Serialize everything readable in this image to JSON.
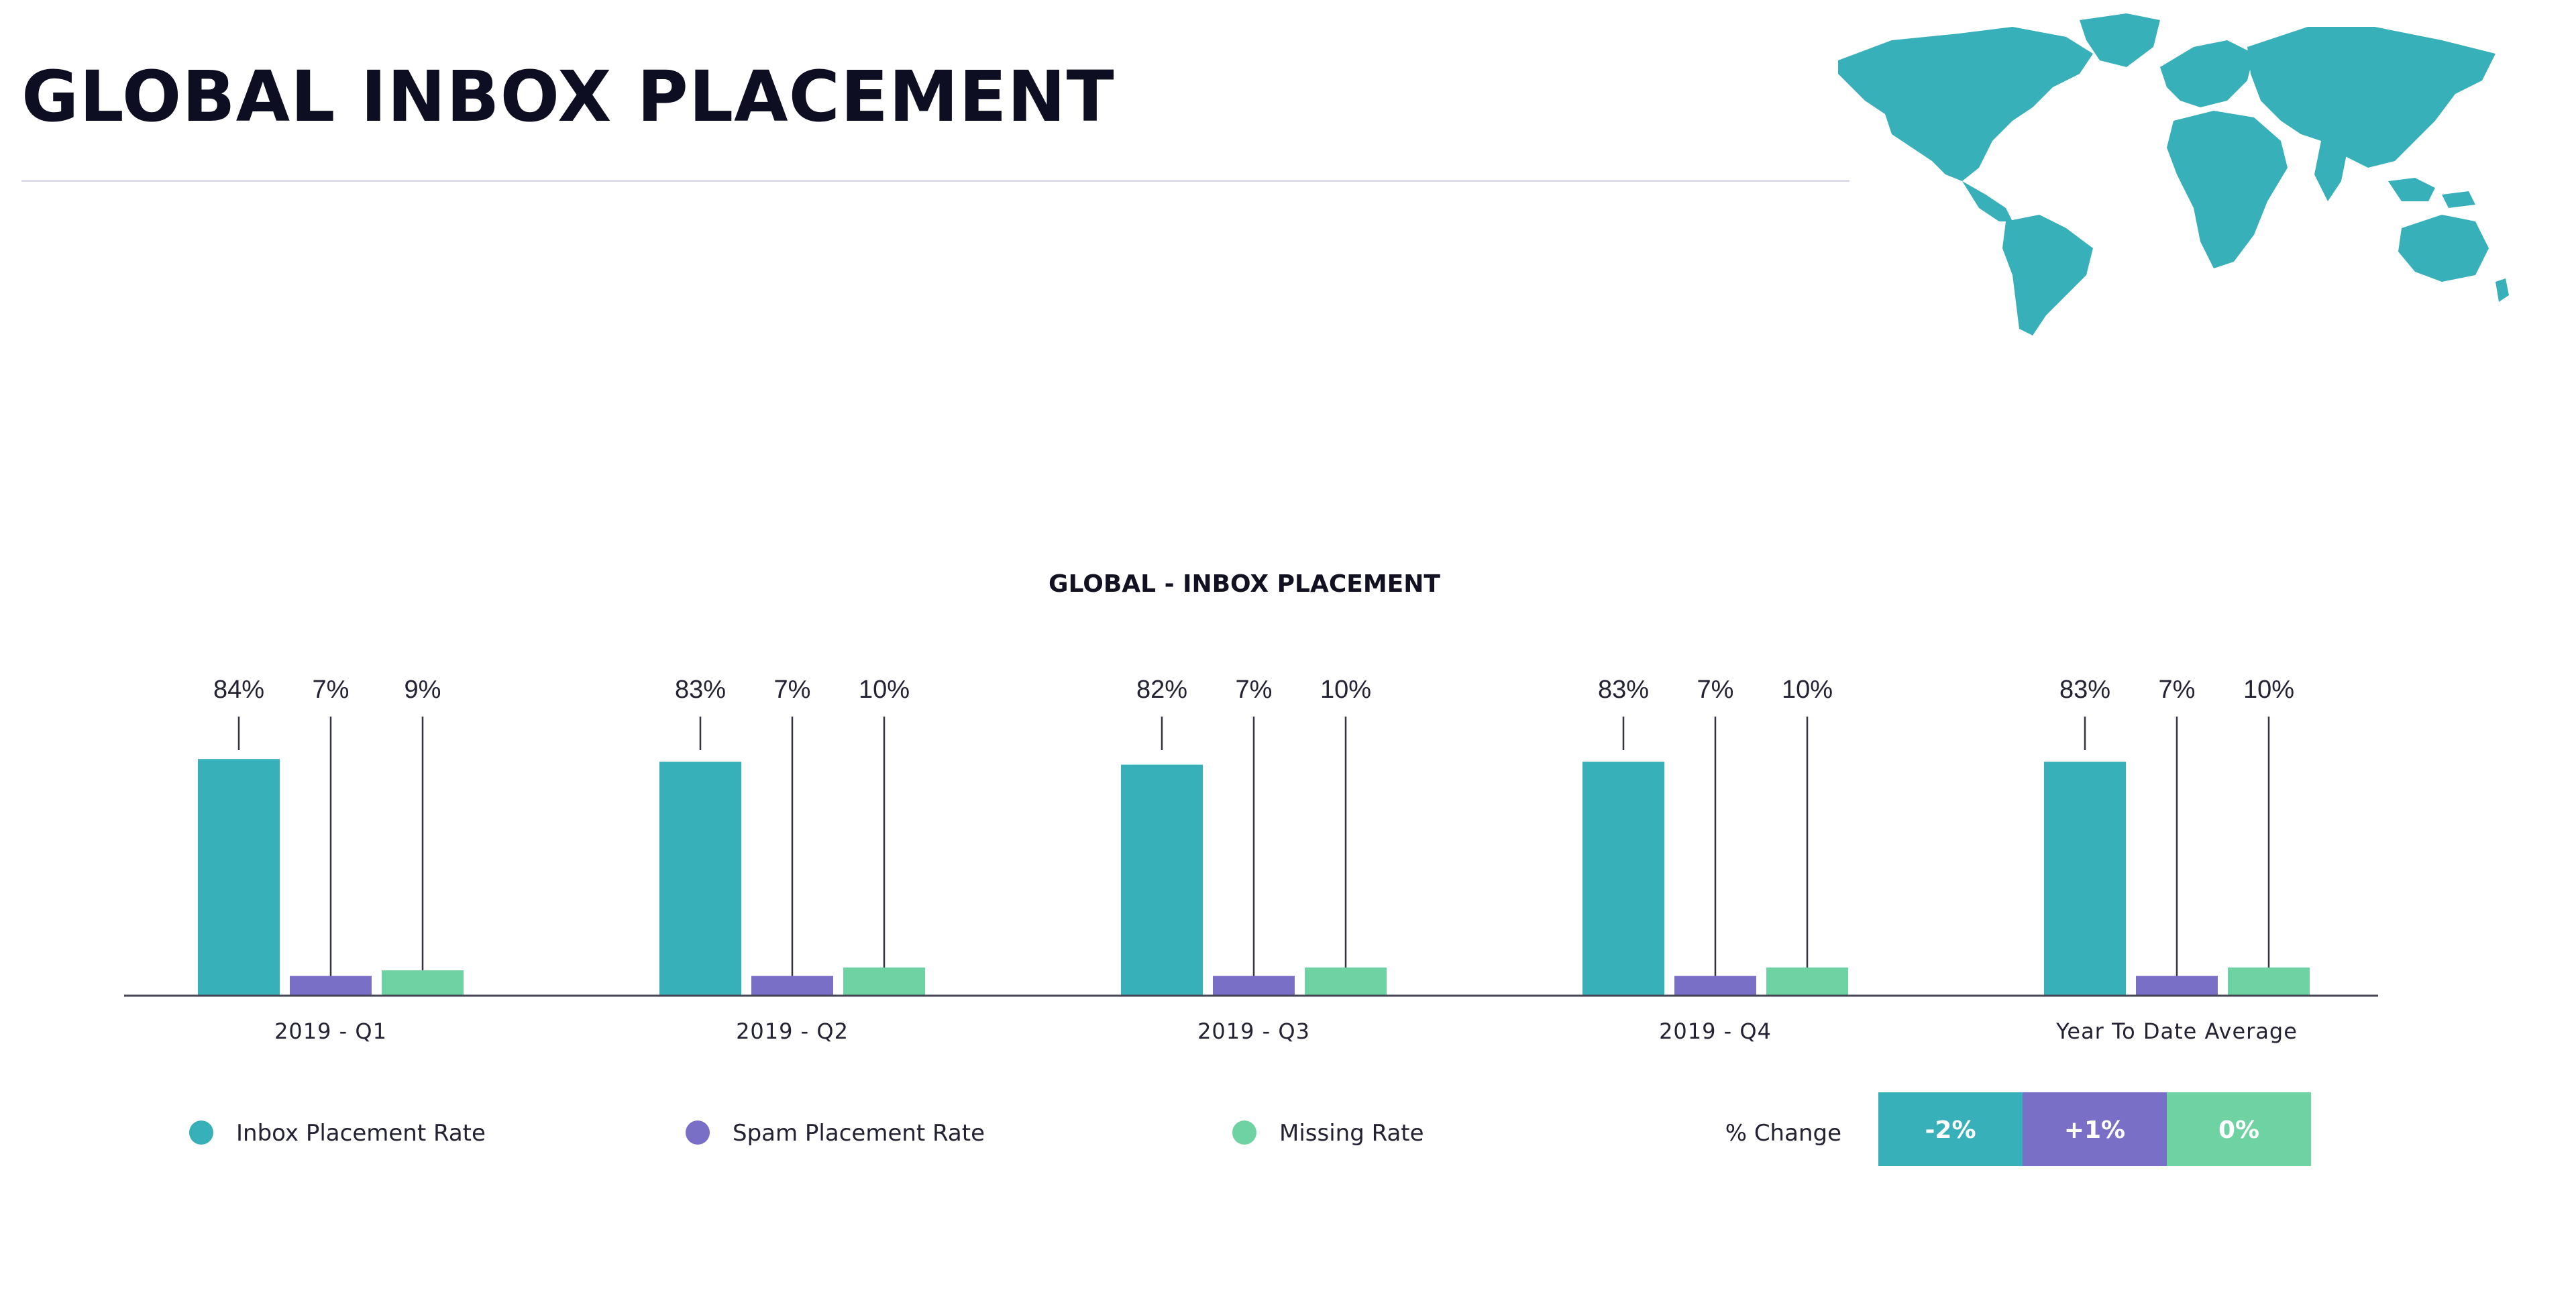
{
  "page": {
    "title": "GLOBAL INBOX PLACEMENT"
  },
  "colors": {
    "inbox": "#37b0b9",
    "spam": "#7a6fc7",
    "missing": "#6ed2a2",
    "text": "#222233",
    "map": "#37b0b9"
  },
  "icons": {
    "map": "world-map-icon"
  },
  "chart_data": {
    "type": "bar",
    "title": "GLOBAL - INBOX PLACEMENT",
    "categories": [
      "2019 - Q1",
      "2019 - Q2",
      "2019 - Q3",
      "2019 - Q4",
      "Year To Date Average"
    ],
    "series": [
      {
        "name": "Inbox Placement Rate",
        "values": [
          84,
          83,
          82,
          83,
          83
        ],
        "color": "#37b0b9"
      },
      {
        "name": "Spam Placement Rate",
        "values": [
          7,
          7,
          7,
          7,
          7
        ],
        "color": "#7a6fc7"
      },
      {
        "name": "Missing Rate",
        "values": [
          9,
          10,
          10,
          10,
          10
        ],
        "color": "#6ed2a2"
      }
    ],
    "value_suffix": "%",
    "ylim": [
      0,
      100
    ],
    "grid": false,
    "legend_placement": "bottom",
    "change": {
      "label": "% Change",
      "values": [
        "-2%",
        "+1%",
        "0%"
      ]
    }
  }
}
